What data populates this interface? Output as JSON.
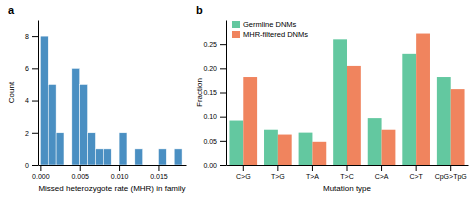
{
  "chart_data": [
    {
      "type": "histogram",
      "title": "a",
      "xlabel": "Missed heterozygote rate (MHR) in family",
      "ylabel": "Count",
      "color": "#4a8fc2",
      "bins": [
        0.0,
        0.001,
        0.002,
        0.003,
        0.004,
        0.005,
        0.006,
        0.007,
        0.008,
        0.009,
        0.01,
        0.011,
        0.012,
        0.013,
        0.014,
        0.015,
        0.016,
        0.017,
        0.018
      ],
      "values": [
        8,
        5,
        2,
        0,
        6,
        5,
        2,
        1,
        1,
        0,
        2,
        0,
        1,
        0,
        0,
        1,
        0,
        1
      ],
      "xlim": [
        -0.0003,
        0.0185
      ],
      "ylim": [
        0,
        9
      ],
      "xticks": [
        {
          "value": 0.0,
          "label": "0.000"
        },
        {
          "value": 0.005,
          "label": "0.005"
        },
        {
          "value": 0.01,
          "label": "0.010"
        },
        {
          "value": 0.015,
          "label": "0.015"
        }
      ],
      "yticks": [
        0,
        2,
        4,
        6,
        8
      ],
      "grid": false
    },
    {
      "type": "bar",
      "title": "b",
      "xlabel": "Mutation type",
      "ylabel": "Fraction",
      "categories": [
        "C>G",
        "T>G",
        "T>A",
        "T>C",
        "C>A",
        "C>T",
        "CpG>TpG"
      ],
      "series": [
        {
          "name": "Germline DNMs",
          "color": "#63c8a0",
          "values": [
            0.092,
            0.073,
            0.067,
            0.26,
            0.097,
            0.23,
            0.182
          ]
        },
        {
          "name": "MHR-filtered DNMs",
          "color": "#f0845e",
          "values": [
            0.182,
            0.063,
            0.048,
            0.205,
            0.073,
            0.272,
            0.157
          ]
        }
      ],
      "ylim": [
        0,
        0.3
      ],
      "yticks": [
        {
          "value": 0.0,
          "label": "0.00"
        },
        0.05,
        {
          "value": 0.1,
          "label": "0.10"
        },
        0.15,
        {
          "value": 0.2,
          "label": "0.20"
        },
        0.25
      ],
      "legend": "upper left",
      "grid": false
    }
  ]
}
